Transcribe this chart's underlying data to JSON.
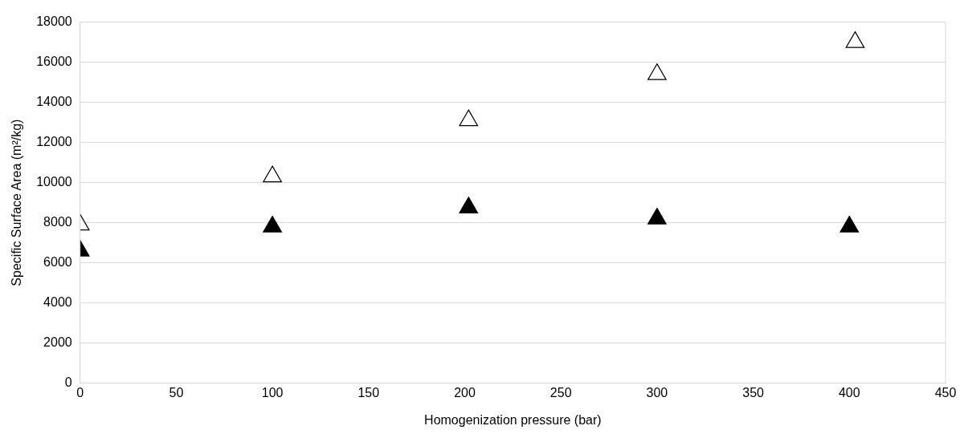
{
  "chart_data": {
    "type": "scatter",
    "xlabel": "Homogenization pressure (bar)",
    "ylabel": "Specific Surface Area (m²/kg)",
    "xlim": [
      0,
      450
    ],
    "xticks": [
      0,
      50,
      100,
      150,
      200,
      250,
      300,
      350,
      400,
      450
    ],
    "ylim": [
      0,
      18000
    ],
    "yticks": [
      0,
      2000,
      4000,
      6000,
      8000,
      10000,
      12000,
      14000,
      16000,
      18000
    ],
    "grid": "y",
    "legend": false,
    "marker": "triangle",
    "series": [
      {
        "color": "#ffffff",
        "x": [
          0,
          100,
          202,
          300,
          403
        ],
        "values": [
          7900,
          10300,
          13100,
          15400,
          17000
        ]
      },
      {
        "color": "#000000",
        "x": [
          0,
          100,
          202,
          300,
          400
        ],
        "values": [
          6600,
          7800,
          8750,
          8200,
          7800
        ]
      }
    ]
  }
}
